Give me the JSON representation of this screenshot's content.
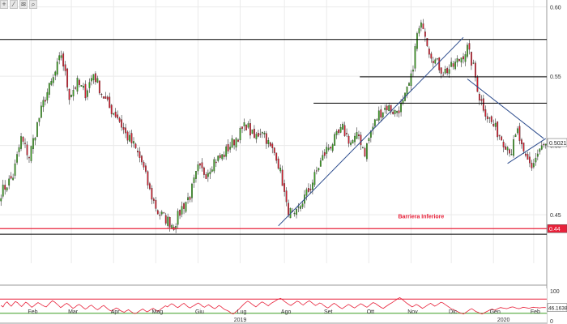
{
  "toolbar": {
    "buttons": [
      {
        "name": "crosshair-icon",
        "glyph": "+"
      },
      {
        "name": "line-tool-icon",
        "glyph": "∕"
      },
      {
        "name": "fibonacci-icon",
        "glyph": "≋"
      },
      {
        "name": "magnify-icon",
        "glyph": "⌕"
      }
    ]
  },
  "chart_data": [
    {
      "type": "candlestick",
      "title": "",
      "xlabel": "",
      "ylabel": "",
      "ylim": [
        0.415,
        0.605
      ],
      "y_ticks": [
        "0.60",
        "0.55",
        "0.50",
        "0.45"
      ],
      "y_tick_values": [
        0.6,
        0.55,
        0.5,
        0.45
      ],
      "grid": true,
      "colors": {
        "up": "#3c9e22",
        "down": "#d01f2f",
        "wick": "#333333",
        "support": "#e8213a",
        "level": "#000000",
        "trend": "#2a4a8c"
      },
      "month_labels": [
        {
          "label": "Feb",
          "index": 15
        },
        {
          "label": "Mar",
          "index": 35
        },
        {
          "label": "Apr",
          "index": 56
        },
        {
          "label": "Mag",
          "index": 77
        },
        {
          "label": "Giu",
          "index": 98
        },
        {
          "label": "Lug",
          "index": 119
        },
        {
          "label": "Ago",
          "index": 141
        },
        {
          "label": "Set",
          "index": 162
        },
        {
          "label": "Ott",
          "index": 183
        },
        {
          "label": "Nov",
          "index": 204
        },
        {
          "label": "Dic",
          "index": 224
        },
        {
          "label": "Gen",
          "index": 245
        },
        {
          "label": "Feb",
          "index": 265
        }
      ],
      "year_labels": [
        {
          "label": "2019",
          "index": 119
        },
        {
          "label": "2020",
          "index": 250
        }
      ],
      "anchors": [
        [
          0,
          0.466
        ],
        [
          6,
          0.478
        ],
        [
          10,
          0.505
        ],
        [
          14,
          0.492
        ],
        [
          18,
          0.515
        ],
        [
          22,
          0.535
        ],
        [
          26,
          0.548
        ],
        [
          30,
          0.566
        ],
        [
          34,
          0.536
        ],
        [
          38,
          0.545
        ],
        [
          42,
          0.538
        ],
        [
          46,
          0.552
        ],
        [
          50,
          0.538
        ],
        [
          54,
          0.527
        ],
        [
          58,
          0.521
        ],
        [
          62,
          0.508
        ],
        [
          66,
          0.5
        ],
        [
          70,
          0.488
        ],
        [
          74,
          0.467
        ],
        [
          78,
          0.452
        ],
        [
          82,
          0.447
        ],
        [
          86,
          0.442
        ],
        [
          90,
          0.455
        ],
        [
          94,
          0.464
        ],
        [
          98,
          0.483
        ],
        [
          102,
          0.48
        ],
        [
          106,
          0.489
        ],
        [
          110,
          0.492
        ],
        [
          114,
          0.5
        ],
        [
          118,
          0.507
        ],
        [
          122,
          0.515
        ],
        [
          126,
          0.505
        ],
        [
          130,
          0.512
        ],
        [
          134,
          0.498
        ],
        [
          137,
          0.493
        ],
        [
          140,
          0.474
        ],
        [
          142,
          0.456
        ],
        [
          146,
          0.447
        ],
        [
          150,
          0.46
        ],
        [
          154,
          0.47
        ],
        [
          158,
          0.485
        ],
        [
          162,
          0.497
        ],
        [
          166,
          0.504
        ],
        [
          170,
          0.512
        ],
        [
          174,
          0.502
        ],
        [
          178,
          0.507
        ],
        [
          181,
          0.495
        ],
        [
          184,
          0.51
        ],
        [
          188,
          0.523
        ],
        [
          192,
          0.528
        ],
        [
          196,
          0.524
        ],
        [
          200,
          0.53
        ],
        [
          204,
          0.548
        ],
        [
          207,
          0.58
        ],
        [
          210,
          0.588
        ],
        [
          213,
          0.569
        ],
        [
          216,
          0.561
        ],
        [
          220,
          0.553
        ],
        [
          224,
          0.556
        ],
        [
          228,
          0.562
        ],
        [
          232,
          0.57
        ],
        [
          235,
          0.556
        ],
        [
          238,
          0.535
        ],
        [
          242,
          0.521
        ],
        [
          246,
          0.512
        ],
        [
          250,
          0.503
        ],
        [
          254,
          0.496
        ],
        [
          257,
          0.51
        ],
        [
          260,
          0.492
        ],
        [
          264,
          0.485
        ],
        [
          268,
          0.497
        ],
        [
          271,
          0.5
        ]
      ],
      "candle_count": 272,
      "volatility": 0.0042,
      "horizontal_lines": [
        {
          "kind": "support",
          "value": 0.44,
          "from": 0,
          "to": 272
        },
        {
          "kind": "level",
          "value": 0.5765,
          "from": 0,
          "to": 272
        },
        {
          "kind": "level",
          "value": 0.436,
          "from": 0,
          "to": 272
        },
        {
          "kind": "level",
          "value": 0.5495,
          "from": 179,
          "to": 272
        },
        {
          "kind": "level",
          "value": 0.5305,
          "from": 156,
          "to": 272
        }
      ],
      "trend_lines": [
        {
          "x1": 138,
          "y1": 0.442,
          "x2": 230,
          "y2": 0.578
        },
        {
          "x1": 232,
          "y1": 0.548,
          "x2": 270,
          "y2": 0.505
        },
        {
          "x1": 252,
          "y1": 0.487,
          "x2": 271,
          "y2": 0.505
        }
      ],
      "annotations": [
        {
          "text": "Barriera Inferiore",
          "color": "#e8213a",
          "index": 209,
          "value": 0.4475
        }
      ],
      "price_labels": [
        {
          "text": "0.44",
          "value": 0.44,
          "bg": "#e8213a",
          "fg": "#ffffff"
        },
        {
          "text": "0.5021",
          "value": 0.5021,
          "bg": "#ffffff",
          "fg": "#222222"
        }
      ]
    },
    {
      "type": "line",
      "title": "",
      "xlabel": "",
      "ylabel": "",
      "ylim": [
        0,
        100
      ],
      "y_ticks": [
        "100",
        "0"
      ],
      "y_tick_values": [
        100,
        0
      ],
      "reference_lines": [
        {
          "value": 70,
          "color": "#e8213a"
        },
        {
          "value": 30,
          "color": "#3c9e22"
        }
      ],
      "series": [
        {
          "values": [
            52,
            48,
            58,
            62,
            55,
            50,
            57,
            63,
            60,
            54,
            49,
            55,
            61,
            58,
            52,
            47,
            51,
            56,
            60,
            57,
            53,
            50,
            48,
            54,
            60,
            65,
            62,
            57,
            52,
            46,
            50,
            55,
            58,
            54,
            49,
            44,
            47,
            52,
            55,
            51,
            46,
            42,
            45,
            50,
            53,
            48,
            43,
            40,
            44,
            49,
            52,
            47,
            42,
            38,
            36,
            41,
            45,
            43,
            38,
            35,
            33,
            37,
            40,
            36,
            32,
            29,
            31,
            35,
            39,
            42,
            38,
            34,
            37,
            41,
            44,
            40,
            36,
            38,
            43,
            47,
            51,
            48,
            53,
            57,
            54,
            49,
            46,
            50,
            55,
            58,
            53,
            48,
            45,
            49,
            52,
            56,
            59,
            55,
            50,
            47,
            51,
            54,
            50,
            46,
            43,
            47,
            52,
            49,
            44,
            40,
            38,
            35,
            30,
            28,
            33,
            38,
            43,
            49,
            55,
            60,
            64,
            61,
            56,
            52,
            48,
            53,
            58,
            62,
            59,
            55,
            51,
            56,
            60,
            63,
            67,
            70,
            72,
            68,
            63,
            59,
            55,
            52,
            56,
            60,
            64,
            62,
            57,
            53,
            58,
            62,
            65,
            61,
            56,
            52,
            55,
            59,
            57,
            52,
            48,
            45,
            49,
            54,
            58,
            55,
            50,
            46,
            43,
            47,
            51,
            55,
            52,
            48,
            45,
            49,
            53,
            57,
            54,
            50,
            47,
            51,
            56,
            60,
            58,
            54,
            50,
            46,
            44,
            48,
            52,
            56,
            59,
            63,
            67,
            71,
            74,
            70,
            65,
            60,
            56,
            52,
            48,
            51,
            55,
            52,
            48,
            44,
            47,
            51,
            55,
            58,
            54,
            50,
            53,
            57,
            61,
            59,
            55,
            51,
            47,
            43,
            40,
            38,
            35,
            32,
            30,
            28,
            32,
            36,
            40,
            43,
            39,
            35,
            33,
            30,
            28,
            31,
            34,
            37,
            40,
            42,
            39,
            41,
            44,
            46.16,
            45,
            44,
            43,
            45,
            47,
            48,
            46,
            44,
            43,
            45,
            47,
            46,
            45,
            44,
            46,
            47,
            46,
            46,
            45,
            46,
            46.16,
            46.16
          ]
        }
      ],
      "value_label": "46.1638"
    }
  ]
}
